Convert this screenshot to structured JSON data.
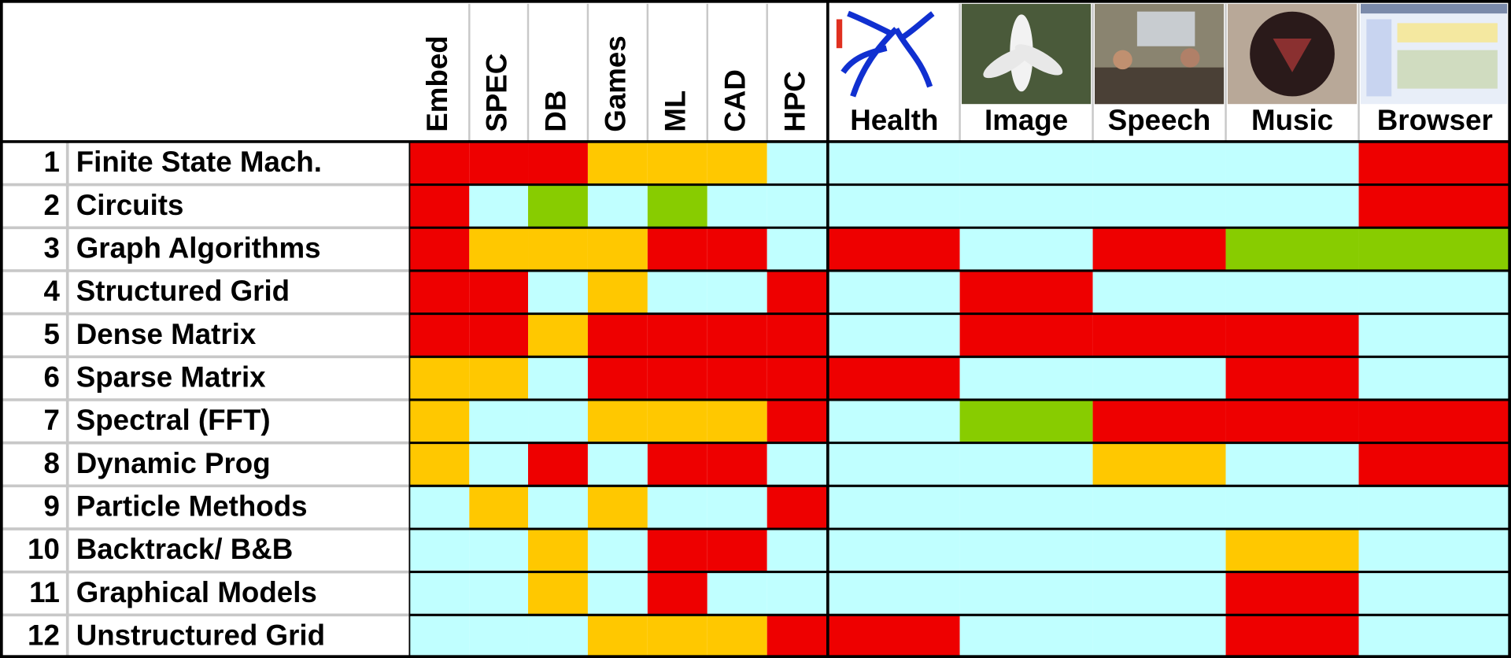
{
  "table": {
    "columns": [
      "Embed",
      "SPEC",
      "DB",
      "Games",
      "ML",
      "CAD",
      "HPC"
    ],
    "apps": [
      "Health",
      "Image",
      "Speech",
      "Music",
      "Browser"
    ],
    "rows": [
      {
        "number": 1,
        "name": "Finite State Mach.",
        "colors": [
          "#ee0000",
          "#ee0000",
          "#ee0000",
          "#ffc800",
          "#ffc800",
          "#ffc800",
          "#c0ffff",
          "#c0ffff",
          "#c0ffff",
          "#c0ffff",
          "#c0ffff",
          "#ee0000"
        ]
      },
      {
        "number": 2,
        "name": "Circuits",
        "colors": [
          "#ee0000",
          "#c0ffff",
          "#88cc00",
          "#c0ffff",
          "#88cc00",
          "#c0ffff",
          "#c0ffff",
          "#c0ffff",
          "#c0ffff",
          "#c0ffff",
          "#c0ffff",
          "#ee0000"
        ]
      },
      {
        "number": 3,
        "name": "Graph Algorithms",
        "colors": [
          "#ee0000",
          "#ffc800",
          "#ffc800",
          "#ffc800",
          "#ee0000",
          "#ee0000",
          "#c0ffff",
          "#ee0000",
          "#c0ffff",
          "#ee0000",
          "#88cc00",
          "#88cc00"
        ]
      },
      {
        "number": 4,
        "name": "Structured Grid",
        "colors": [
          "#ee0000",
          "#ee0000",
          "#c0ffff",
          "#ffc800",
          "#c0ffff",
          "#c0ffff",
          "#ee0000",
          "#c0ffff",
          "#ee0000",
          "#c0ffff",
          "#c0ffff",
          "#c0ffff"
        ]
      },
      {
        "number": 5,
        "name": "Dense Matrix",
        "colors": [
          "#ee0000",
          "#ee0000",
          "#ffc800",
          "#ee0000",
          "#ee0000",
          "#ee0000",
          "#ee0000",
          "#c0ffff",
          "#ee0000",
          "#ee0000",
          "#ee0000",
          "#c0ffff"
        ]
      },
      {
        "number": 6,
        "name": "Sparse Matrix",
        "colors": [
          "#ffc800",
          "#ffc800",
          "#c0ffff",
          "#ee0000",
          "#ee0000",
          "#ee0000",
          "#ee0000",
          "#ee0000",
          "#c0ffff",
          "#c0ffff",
          "#ee0000",
          "#c0ffff"
        ]
      },
      {
        "number": 7,
        "name": "Spectral (FFT)",
        "colors": [
          "#ffc800",
          "#c0ffff",
          "#c0ffff",
          "#ffc800",
          "#ffc800",
          "#ffc800",
          "#ee0000",
          "#c0ffff",
          "#88cc00",
          "#ee0000",
          "#ee0000",
          "#ee0000"
        ]
      },
      {
        "number": 8,
        "name": "Dynamic Prog",
        "colors": [
          "#ffc800",
          "#c0ffff",
          "#ee0000",
          "#c0ffff",
          "#ee0000",
          "#ee0000",
          "#c0ffff",
          "#c0ffff",
          "#c0ffff",
          "#ffc800",
          "#c0ffff",
          "#ee0000"
        ]
      },
      {
        "number": 9,
        "name": "Particle Methods",
        "colors": [
          "#c0ffff",
          "#ffc800",
          "#c0ffff",
          "#ffc800",
          "#c0ffff",
          "#c0ffff",
          "#ee0000",
          "#c0ffff",
          "#c0ffff",
          "#c0ffff",
          "#c0ffff",
          "#c0ffff"
        ]
      },
      {
        "number": 10,
        "name": "Backtrack/ B&B",
        "colors": [
          "#c0ffff",
          "#c0ffff",
          "#ffc800",
          "#c0ffff",
          "#ee0000",
          "#ee0000",
          "#c0ffff",
          "#c0ffff",
          "#c0ffff",
          "#c0ffff",
          "#ffc800",
          "#c0ffff"
        ]
      },
      {
        "number": 11,
        "name": "Graphical Models",
        "colors": [
          "#c0ffff",
          "#c0ffff",
          "#ffc800",
          "#c0ffff",
          "#ee0000",
          "#c0ffff",
          "#c0ffff",
          "#c0ffff",
          "#c0ffff",
          "#c0ffff",
          "#ee0000",
          "#c0ffff"
        ]
      },
      {
        "number": 12,
        "name": "Unstructured Grid",
        "colors": [
          "#c0ffff",
          "#c0ffff",
          "#c0ffff",
          "#ffc800",
          "#ffc800",
          "#ffc800",
          "#ee0000",
          "#ee0000",
          "#c0ffff",
          "#c0ffff",
          "#ee0000",
          "#c0ffff"
        ]
      }
    ]
  }
}
